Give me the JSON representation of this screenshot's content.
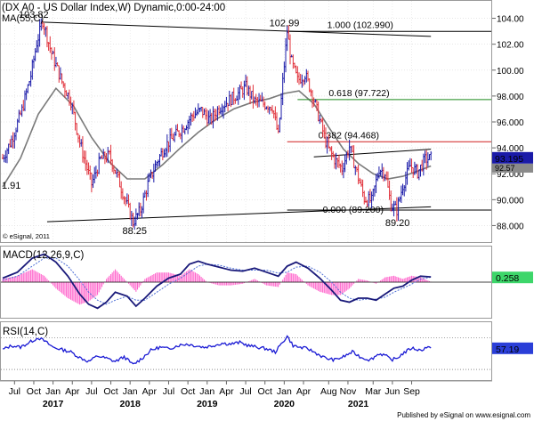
{
  "chart_data": [
    {
      "panel": "price",
      "type": "ohlc",
      "title": "(DX A0 - US Dollar Index,W) Dynamic,0:00-24:00",
      "indicator_label": "MA(55,C)",
      "watermark": "© eSignal, 2011",
      "ylim": [
        87.0,
        105.0
      ],
      "ticks": [
        88.0,
        90.0,
        92.0,
        94.0,
        96.0,
        98.0,
        100.0,
        102.0,
        104.0
      ],
      "tick_labels": [
        "88.000",
        "90.000",
        "92.000",
        "94.000",
        "96.000",
        "98.000",
        "100.00",
        "102.00",
        "104.00"
      ],
      "last_price_label": "93.195",
      "last_ma_label": "92.57",
      "bull_color": "#1a1aa8",
      "bear_color": "#e0303a",
      "ma_color": "#7a7a7a",
      "price_path": [
        [
          0,
          93.2
        ],
        [
          6,
          94.6
        ],
        [
          13,
          96.9
        ],
        [
          19,
          99.6
        ],
        [
          23,
          102.1
        ],
        [
          27,
          103.82
        ],
        [
          33,
          101.3
        ],
        [
          40,
          99.1
        ],
        [
          46,
          97.6
        ],
        [
          52,
          94.4
        ],
        [
          56,
          92.8
        ],
        [
          60,
          91.2
        ],
        [
          66,
          93.1
        ],
        [
          72,
          93.4
        ],
        [
          77,
          91.9
        ],
        [
          83,
          89.9
        ],
        [
          88,
          88.25
        ],
        [
          93,
          89.2
        ],
        [
          98,
          91.2
        ],
        [
          104,
          92.9
        ],
        [
          110,
          94.2
        ],
        [
          116,
          94.9
        ],
        [
          122,
          95.6
        ],
        [
          128,
          96.5
        ],
        [
          134,
          96.9
        ],
        [
          140,
          96.1
        ],
        [
          146,
          97.1
        ],
        [
          152,
          97.6
        ],
        [
          158,
          98.1
        ],
        [
          164,
          98.7
        ],
        [
          170,
          97.6
        ],
        [
          176,
          97.4
        ],
        [
          182,
          97.2
        ],
        [
          186,
          94.9
        ],
        [
          189,
          99.1
        ],
        [
          192,
          102.99
        ],
        [
          195,
          100.6
        ],
        [
          199,
          99.2
        ],
        [
          204,
          99.7
        ],
        [
          209,
          98.1
        ],
        [
          214,
          96.1
        ],
        [
          219,
          94.1
        ],
        [
          224,
          93.1
        ],
        [
          229,
          92.4
        ],
        [
          234,
          94.1
        ],
        [
          239,
          92.1
        ],
        [
          244,
          90.1
        ],
        [
          249,
          89.9
        ],
        [
          254,
          92.4
        ],
        [
          258,
          92.1
        ],
        [
          262,
          89.6
        ],
        [
          266,
          89.2
        ],
        [
          270,
          91.1
        ],
        [
          275,
          92.6
        ],
        [
          280,
          92.1
        ],
        [
          285,
          93.1
        ],
        [
          289,
          93.2
        ]
      ],
      "ma_path": [
        [
          0,
          91.0
        ],
        [
          12,
          93.2
        ],
        [
          24,
          96.6
        ],
        [
          36,
          98.6
        ],
        [
          48,
          97.2
        ],
        [
          60,
          94.8
        ],
        [
          72,
          92.9
        ],
        [
          84,
          91.6
        ],
        [
          96,
          91.6
        ],
        [
          108,
          92.7
        ],
        [
          120,
          94.0
        ],
        [
          132,
          95.2
        ],
        [
          144,
          96.2
        ],
        [
          156,
          97.0
        ],
        [
          168,
          97.5
        ],
        [
          180,
          97.8
        ],
        [
          190,
          98.2
        ],
        [
          200,
          98.4
        ],
        [
          210,
          97.4
        ],
        [
          220,
          95.6
        ],
        [
          230,
          93.9
        ],
        [
          240,
          92.8
        ],
        [
          250,
          92.0
        ],
        [
          260,
          91.6
        ],
        [
          270,
          91.8
        ],
        [
          280,
          92.2
        ],
        [
          289,
          92.6
        ]
      ],
      "trendlines": [
        {
          "name": "upper-channel",
          "points": [
            [
              27,
              103.7
            ],
            [
              289,
              102.6
            ]
          ]
        },
        {
          "name": "lower-channel",
          "points": [
            [
              30,
              88.3
            ],
            [
              289,
              89.45
            ]
          ]
        },
        {
          "name": "recent-upper",
          "points": [
            [
              210,
              93.3
            ],
            [
              289,
              93.9
            ]
          ]
        }
      ],
      "fib_levels": [
        {
          "label": "1.000 (102.990)",
          "value": 102.99,
          "x_start": 192,
          "color": "#000000"
        },
        {
          "label": "0.618 (97.722)",
          "value": 97.722,
          "x_start": 199,
          "color": "#1a8a1a"
        },
        {
          "label": "0.382 (94.468)",
          "value": 94.468,
          "x_start": 192,
          "color": "#d02020"
        },
        {
          "label": "0.000 (89.200)",
          "value": 89.2,
          "x_start": 192,
          "color": "#000000"
        }
      ],
      "annotations": [
        {
          "text": "103.82",
          "x": 27,
          "y": 103.82
        },
        {
          "text": "1.91",
          "x": 0,
          "y": 90.85
        },
        {
          "text": "102.99",
          "x": 192,
          "y": 102.99
        },
        {
          "text": "88.25",
          "x": 88,
          "y": 88.25
        },
        {
          "text": "89.20",
          "x": 266,
          "y": 89.2
        }
      ]
    },
    {
      "panel": "macd",
      "type": "line",
      "title": "MACD(12,26,9,C)",
      "ylim": [
        -1.6,
        1.6
      ],
      "last_value_label": "0.258",
      "macd_color": "#1a1a7a",
      "signal_color": "#4d6fd6",
      "hist_color": "#ff66cc",
      "macd_path": [
        [
          0,
          0.2
        ],
        [
          10,
          0.5
        ],
        [
          20,
          1.2
        ],
        [
          28,
          1.4
        ],
        [
          36,
          1.0
        ],
        [
          44,
          0.3
        ],
        [
          52,
          -0.6
        ],
        [
          58,
          -1.1
        ],
        [
          64,
          -1.3
        ],
        [
          70,
          -1.0
        ],
        [
          76,
          -0.5
        ],
        [
          84,
          -0.7
        ],
        [
          90,
          -1.2
        ],
        [
          96,
          -0.8
        ],
        [
          104,
          -0.2
        ],
        [
          112,
          0.2
        ],
        [
          120,
          0.4
        ],
        [
          126,
          0.9
        ],
        [
          132,
          1.05
        ],
        [
          138,
          0.9
        ],
        [
          146,
          0.75
        ],
        [
          154,
          0.6
        ],
        [
          162,
          0.55
        ],
        [
          170,
          0.7
        ],
        [
          178,
          0.5
        ],
        [
          186,
          0.3
        ],
        [
          192,
          0.8
        ],
        [
          198,
          1.0
        ],
        [
          206,
          0.7
        ],
        [
          214,
          0.2
        ],
        [
          222,
          -0.4
        ],
        [
          228,
          -0.9
        ],
        [
          234,
          -1.0
        ],
        [
          240,
          -0.8
        ],
        [
          246,
          -0.8
        ],
        [
          252,
          -0.9
        ],
        [
          258,
          -0.6
        ],
        [
          264,
          -0.3
        ],
        [
          270,
          -0.2
        ],
        [
          276,
          0.1
        ],
        [
          282,
          0.3
        ],
        [
          289,
          0.26
        ]
      ],
      "signal_path": [
        [
          0,
          0.1
        ],
        [
          10,
          0.3
        ],
        [
          20,
          0.8
        ],
        [
          28,
          1.2
        ],
        [
          36,
          1.2
        ],
        [
          44,
          0.8
        ],
        [
          52,
          0.1
        ],
        [
          58,
          -0.5
        ],
        [
          64,
          -0.9
        ],
        [
          70,
          -1.1
        ],
        [
          76,
          -0.9
        ],
        [
          84,
          -0.7
        ],
        [
          90,
          -0.9
        ],
        [
          96,
          -0.9
        ],
        [
          104,
          -0.5
        ],
        [
          112,
          -0.1
        ],
        [
          120,
          0.2
        ],
        [
          126,
          0.5
        ],
        [
          132,
          0.8
        ],
        [
          138,
          0.9
        ],
        [
          146,
          0.85
        ],
        [
          154,
          0.7
        ],
        [
          162,
          0.6
        ],
        [
          170,
          0.6
        ],
        [
          178,
          0.6
        ],
        [
          186,
          0.45
        ],
        [
          192,
          0.5
        ],
        [
          198,
          0.75
        ],
        [
          206,
          0.8
        ],
        [
          214,
          0.5
        ],
        [
          222,
          0.0
        ],
        [
          228,
          -0.5
        ],
        [
          234,
          -0.8
        ],
        [
          240,
          -0.9
        ],
        [
          246,
          -0.85
        ],
        [
          252,
          -0.85
        ],
        [
          258,
          -0.75
        ],
        [
          264,
          -0.5
        ],
        [
          270,
          -0.3
        ],
        [
          276,
          -0.1
        ],
        [
          282,
          0.15
        ],
        [
          289,
          0.25
        ]
      ]
    },
    {
      "panel": "rsi",
      "type": "line",
      "title": "RSI(14,C)",
      "ylim": [
        20,
        85
      ],
      "ref_lines": [
        70,
        30
      ],
      "last_value_label": "57.19",
      "line_color": "#1a1ad4",
      "rsi_path": [
        [
          0,
          55
        ],
        [
          6,
          60
        ],
        [
          12,
          58
        ],
        [
          18,
          64
        ],
        [
          24,
          70
        ],
        [
          28,
          66
        ],
        [
          34,
          58
        ],
        [
          40,
          55
        ],
        [
          46,
          52
        ],
        [
          52,
          45
        ],
        [
          58,
          40
        ],
        [
          64,
          47
        ],
        [
          70,
          44
        ],
        [
          76,
          40
        ],
        [
          82,
          46
        ],
        [
          88,
          36
        ],
        [
          94,
          44
        ],
        [
          100,
          54
        ],
        [
          106,
          58
        ],
        [
          112,
          56
        ],
        [
          118,
          60
        ],
        [
          124,
          62
        ],
        [
          130,
          60
        ],
        [
          136,
          58
        ],
        [
          142,
          60
        ],
        [
          148,
          63
        ],
        [
          154,
          62
        ],
        [
          160,
          64
        ],
        [
          166,
          60
        ],
        [
          172,
          58
        ],
        [
          178,
          56
        ],
        [
          184,
          52
        ],
        [
          188,
          62
        ],
        [
          192,
          72
        ],
        [
          196,
          60
        ],
        [
          200,
          58
        ],
        [
          206,
          56
        ],
        [
          212,
          50
        ],
        [
          218,
          44
        ],
        [
          224,
          42
        ],
        [
          230,
          46
        ],
        [
          236,
          52
        ],
        [
          242,
          45
        ],
        [
          248,
          42
        ],
        [
          254,
          50
        ],
        [
          258,
          48
        ],
        [
          262,
          42
        ],
        [
          266,
          44
        ],
        [
          270,
          50
        ],
        [
          276,
          57
        ],
        [
          282,
          54
        ],
        [
          286,
          58
        ],
        [
          289,
          57
        ]
      ]
    }
  ],
  "x_axis": {
    "month_labels": [
      {
        "label": "Jul",
        "x": 8
      },
      {
        "label": "Oct",
        "x": 21
      },
      {
        "label": "Jan",
        "x": 34
      },
      {
        "label": "Apr",
        "x": 47
      },
      {
        "label": "Jul",
        "x": 60
      },
      {
        "label": "Oct",
        "x": 73
      },
      {
        "label": "Jan",
        "x": 86
      },
      {
        "label": "Apr",
        "x": 99
      },
      {
        "label": "Jul",
        "x": 112
      },
      {
        "label": "Oct",
        "x": 125
      },
      {
        "label": "Jan",
        "x": 138
      },
      {
        "label": "Apr",
        "x": 151
      },
      {
        "label": "Jul",
        "x": 164
      },
      {
        "label": "Oct",
        "x": 177
      },
      {
        "label": "Jan",
        "x": 190
      },
      {
        "label": "Apr",
        "x": 203
      },
      {
        "label": "Aug",
        "x": 220
      },
      {
        "label": "Nov",
        "x": 233
      },
      {
        "label": "Mar",
        "x": 250
      },
      {
        "label": "Jun",
        "x": 263
      },
      {
        "label": "Sep",
        "x": 276
      }
    ],
    "year_labels": [
      {
        "label": "2017",
        "x": 34
      },
      {
        "label": "2018",
        "x": 86
      },
      {
        "label": "2019",
        "x": 138
      },
      {
        "label": "2020",
        "x": 190
      },
      {
        "label": "2021",
        "x": 240
      }
    ]
  },
  "footer": "Published by eSignal on www.esignal.com"
}
